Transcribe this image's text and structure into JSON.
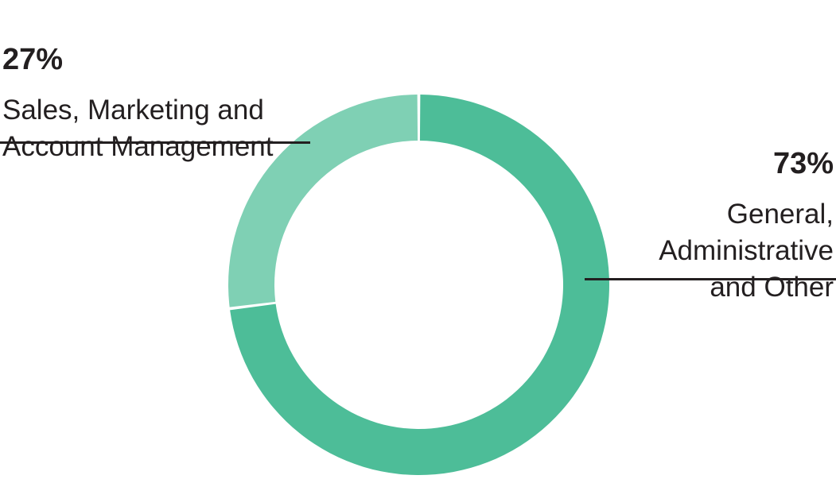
{
  "chart_data": {
    "type": "pie",
    "subtype": "donut",
    "title": "",
    "units": "percent",
    "segments": [
      {
        "label": "General, Administrative and Other",
        "value": 73,
        "color": "#4DBD98"
      },
      {
        "label": "Sales, Marketing and Account Management",
        "value": 27,
        "color": "#7FD0B4"
      }
    ],
    "start_angle_deg": 0,
    "direction": "clockwise",
    "segment_gap_deg": 0.9,
    "legend_position": "callouts"
  },
  "callouts": {
    "left": {
      "pct": "27%",
      "label": "Sales, Marketing and\nAccount Management"
    },
    "right": {
      "pct": "73%",
      "label": "General,\nAdministrative\nand Other"
    }
  },
  "colors": {
    "background": "#FFFFFF",
    "text": "#231F20",
    "leader_line": "#231F20",
    "segment_dark": "#4DBD98",
    "segment_light": "#7FD0B4"
  }
}
